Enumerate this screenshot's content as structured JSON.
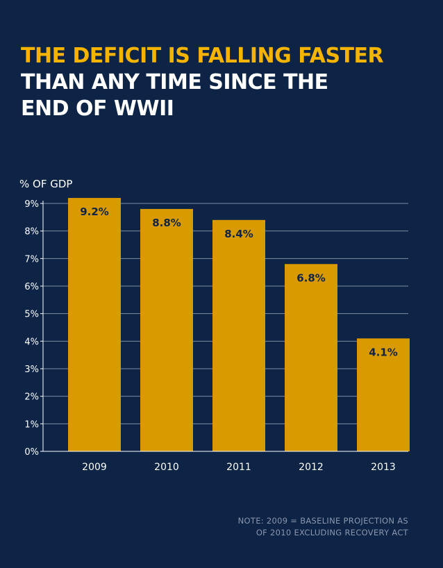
{
  "title": {
    "line1": "THE DEFICIT IS FALLING FASTER",
    "line2": "THAN ANY TIME SINCE THE",
    "line3": "END OF WWII"
  },
  "colors": {
    "background": "#0e2447",
    "bar": "#d99a00",
    "highlight": "#f5b400",
    "grid": "#9aa6bd",
    "text": "#ffffff",
    "note": "#8a96ad"
  },
  "chart_data": {
    "type": "bar",
    "ylabel": "% OF GDP",
    "categories": [
      "2009",
      "2010",
      "2011",
      "2012",
      "2013"
    ],
    "values": [
      9.2,
      8.8,
      8.4,
      6.8,
      4.1
    ],
    "data_labels": [
      "9.2%",
      "8.8%",
      "8.4%",
      "6.8%",
      "4.1%"
    ],
    "ylim": [
      0,
      9
    ],
    "yticks": [
      0,
      1,
      2,
      3,
      4,
      5,
      6,
      7,
      8,
      9
    ],
    "ytick_labels": [
      "0%",
      "1%",
      "2%",
      "3%",
      "4%",
      "5%",
      "6%",
      "7%",
      "8%",
      "9%"
    ],
    "grid": true
  },
  "note": {
    "line1": "NOTE: 2009 = BASELINE PROJECTION AS",
    "line2": "OF 2010 EXCLUDING RECOVERY ACT"
  }
}
